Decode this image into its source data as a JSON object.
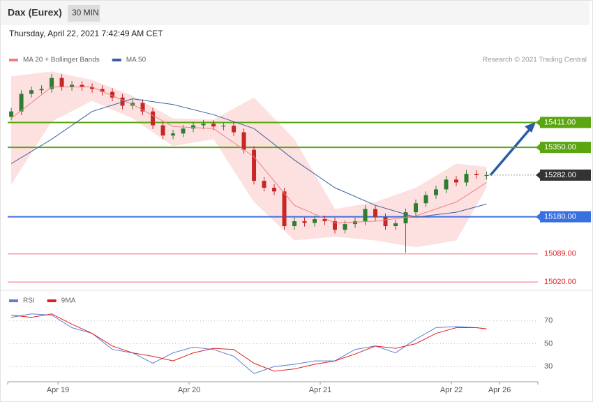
{
  "header": {
    "title": "Dax (Eurex)",
    "interval": "30 MIN",
    "timestamp": "Thursday, April 22, 2021 7:42:49 AM CET",
    "source": "Research © 2021 Trading Central"
  },
  "chart_data": [
    {
      "type": "candlestick",
      "x": [
        0,
        1,
        2,
        3,
        4,
        5,
        6,
        7,
        8,
        9,
        10,
        11,
        12,
        13,
        14,
        15,
        16,
        17,
        18,
        19,
        20,
        21,
        22,
        23,
        24,
        25,
        26,
        27,
        28,
        29,
        30,
        31,
        32,
        33,
        34,
        35,
        36,
        37,
        38,
        39,
        40,
        41,
        42,
        43,
        44,
        45,
        46,
        47
      ],
      "open": [
        15425,
        15438,
        15481,
        15490,
        15493,
        15520,
        15498,
        15503,
        15498,
        15493,
        15486,
        15472,
        15452,
        15459,
        15438,
        15404,
        15379,
        15384,
        15396,
        15404,
        15408,
        15401,
        15403,
        15387,
        15344,
        15268,
        15251,
        15242,
        15157,
        15169,
        15165,
        15174,
        15169,
        15148,
        15162,
        15169,
        15199,
        15179,
        15157,
        15164,
        15191,
        15213,
        15233,
        15247,
        15271,
        15264,
        15285,
        15280
      ],
      "high": [
        15447,
        15490,
        15499,
        15502,
        15530,
        15529,
        15512,
        15512,
        15507,
        15502,
        15495,
        15481,
        15468,
        15468,
        15447,
        15413,
        15393,
        15405,
        15413,
        15417,
        15417,
        15410,
        15412,
        15396,
        15353,
        15277,
        15260,
        15251,
        15178,
        15178,
        15183,
        15183,
        15178,
        15171,
        15178,
        15208,
        15208,
        15188,
        15173,
        15200,
        15222,
        15242,
        15256,
        15280,
        15280,
        15294,
        15294,
        15291
      ],
      "low": [
        15416,
        15429,
        15472,
        15481,
        15484,
        15489,
        15489,
        15489,
        15484,
        15477,
        15463,
        15443,
        15443,
        15429,
        15395,
        15370,
        15370,
        15375,
        15387,
        15395,
        15392,
        15392,
        15378,
        15335,
        15259,
        15242,
        15233,
        15148,
        15148,
        15156,
        15156,
        15160,
        15139,
        15139,
        15153,
        15160,
        15170,
        15148,
        15148,
        15092,
        15182,
        15204,
        15224,
        15238,
        15255,
        15255,
        15273,
        15271
      ],
      "close": [
        15438,
        15481,
        15490,
        15493,
        15520,
        15498,
        15503,
        15498,
        15493,
        15486,
        15472,
        15452,
        15459,
        15438,
        15404,
        15379,
        15384,
        15396,
        15404,
        15408,
        15401,
        15403,
        15387,
        15344,
        15268,
        15251,
        15242,
        15157,
        15169,
        15165,
        15174,
        15169,
        15148,
        15162,
        15169,
        15199,
        15179,
        15157,
        15164,
        15191,
        15213,
        15233,
        15247,
        15271,
        15264,
        15285,
        15282,
        15282
      ],
      "up_color": "#2e7d32",
      "down_color": "#c62828",
      "series": [
        {
          "name": "MA 20 + Bollinger Bands",
          "color": "#f08080",
          "band_color": "#fde0e0",
          "x": [
            0,
            4,
            8,
            12,
            16,
            20,
            24,
            28,
            32,
            36,
            40,
            44,
            47
          ],
          "values": [
            15421,
            15498,
            15498,
            15455,
            15401,
            15396,
            15327,
            15208,
            15165,
            15169,
            15182,
            15216,
            15264
          ],
          "upper": [
            15524,
            15536,
            15515,
            15476,
            15421,
            15418,
            15472,
            15370,
            15199,
            15216,
            15251,
            15310,
            15302
          ],
          "lower": [
            15259,
            15413,
            15464,
            15421,
            15353,
            15370,
            15216,
            15122,
            15131,
            15122,
            15105,
            15122,
            15251
          ]
        },
        {
          "name": "MA 50",
          "color": "#3a5fa0",
          "x": [
            0,
            4,
            8,
            12,
            16,
            20,
            24,
            28,
            32,
            36,
            40,
            44,
            47
          ],
          "values": [
            15310,
            15370,
            15438,
            15469,
            15455,
            15430,
            15396,
            15319,
            15251,
            15208,
            15179,
            15191,
            15211
          ]
        }
      ],
      "levels": [
        {
          "value": 15411,
          "label": "15411.00",
          "color": "#5aa510",
          "style": "solid",
          "box": true
        },
        {
          "value": 15350,
          "label": "15350.00",
          "color": "#5aa510",
          "style": "solid",
          "box": true
        },
        {
          "value": 15282,
          "label": "15282.00",
          "color": "#333333",
          "style": "dotted",
          "box": true
        },
        {
          "value": 15180,
          "label": "15180.00",
          "color": "#3a6fe0",
          "style": "solid",
          "box": true
        },
        {
          "value": 15089,
          "label": "15089.00",
          "color": "#f4a0a8",
          "style": "solid",
          "box": false
        },
        {
          "value": 15020,
          "label": "15020.00",
          "color": "#f4a0a8",
          "style": "solid",
          "box": false
        }
      ],
      "xlim": [
        -0.35,
        52.07
      ],
      "ylim": [
        15010,
        15540
      ]
    },
    {
      "type": "line",
      "series": [
        {
          "name": "RSI",
          "color": "#5b7fd6",
          "x": [
            0,
            2,
            4,
            6,
            8,
            10,
            12,
            14,
            16,
            18,
            20,
            22,
            24,
            26,
            28,
            30,
            32,
            34,
            36,
            38,
            40,
            42,
            44,
            46,
            47
          ],
          "values": [
            73,
            76,
            75,
            64,
            59,
            45,
            42,
            33,
            42,
            47,
            45,
            39,
            24,
            30,
            32,
            35,
            35,
            45,
            48,
            42,
            54,
            64,
            65,
            64,
            63
          ]
        },
        {
          "name": "9MA",
          "color": "#e02020",
          "x": [
            0,
            2,
            4,
            6,
            8,
            10,
            12,
            14,
            16,
            18,
            20,
            22,
            24,
            26,
            28,
            30,
            32,
            34,
            36,
            38,
            40,
            42,
            44,
            46,
            47
          ],
          "values": [
            75,
            73,
            76,
            67,
            59,
            48,
            42,
            39,
            35,
            42,
            46,
            45,
            33,
            26,
            28,
            32,
            35,
            41,
            48,
            46,
            50,
            59,
            64,
            64,
            63
          ]
        }
      ],
      "xlim": [
        -0.35,
        52.07
      ],
      "ylim": [
        18,
        82
      ],
      "yticks": [
        30,
        50,
        70
      ],
      "grid": true,
      "xticks": [
        {
          "value": 4.62,
          "label": "Apr 19"
        },
        {
          "value": 17.59,
          "label": "Apr 20"
        },
        {
          "value": 30.55,
          "label": "Apr 21"
        },
        {
          "value": 43.52,
          "label": "Apr 22"
        },
        {
          "value": 48.28,
          "label": "Apr 26"
        }
      ]
    }
  ]
}
